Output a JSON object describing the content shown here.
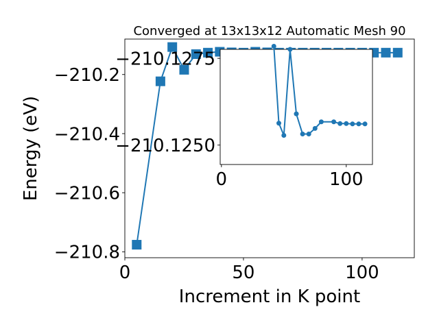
{
  "chart_data": [
    {
      "type": "line",
      "title": "Converged at 13x13x12 Automatic Mesh 90",
      "xlabel": "Increment in K point",
      "ylabel": "Energy (eV)",
      "xlim": [
        0,
        122
      ],
      "ylim": [
        -210.82,
        -210.08
      ],
      "x_ticks": [
        0,
        50,
        100
      ],
      "y_ticks": [
        -210.8,
        -210.6,
        -210.4,
        -210.2
      ],
      "x_tick_labels": [
        "0",
        "50",
        "100"
      ],
      "y_tick_labels": [
        "−210.8",
        "−210.6",
        "−210.4",
        "−210.2"
      ],
      "grid": false,
      "marker": "square",
      "color": "#1f77b4",
      "series": [
        {
          "x": [
            5,
            15,
            20,
            25,
            30,
            35,
            40,
            45,
            50,
            55,
            60,
            65,
            70,
            75,
            80,
            85,
            90,
            95,
            100,
            105,
            110,
            115
          ],
          "values": [
            -210.776,
            -210.223,
            -210.107,
            -210.184,
            -210.131,
            -210.126,
            -210.123,
            -210.125,
            -210.126,
            -210.123,
            -210.125,
            -210.126,
            -210.126,
            -210.126,
            -210.126,
            -210.126,
            -210.126,
            -210.126,
            -210.126,
            -210.126,
            -210.126,
            -210.126
          ]
        }
      ]
    },
    {
      "type": "line",
      "title": "",
      "xlabel": "",
      "ylabel": "",
      "xlim": [
        -1,
        121
      ],
      "ylim": [
        -210.12444,
        -210.12776
      ],
      "x_ticks": [
        0,
        100
      ],
      "y_ticks": [
        -210.1275,
        -210.125
      ],
      "x_tick_labels": [
        "0",
        "100"
      ],
      "y_tick_labels": [
        "−210.1275",
        "−210.1250"
      ],
      "grid": false,
      "marker": "circle",
      "color": "#1f77b4",
      "series": [
        {
          "x": [
            42,
            46,
            50,
            55,
            60,
            65,
            70,
            75,
            80,
            90,
            95,
            100,
            105,
            110,
            115
          ],
          "values": [
            -210.12785,
            -210.12563,
            -210.12528,
            -210.12776,
            -210.1259,
            -210.12532,
            -210.12532,
            -210.12548,
            -210.12567,
            -210.12567,
            -210.12562,
            -210.12562,
            -210.12561,
            -210.12561,
            -210.12561
          ]
        }
      ]
    }
  ]
}
